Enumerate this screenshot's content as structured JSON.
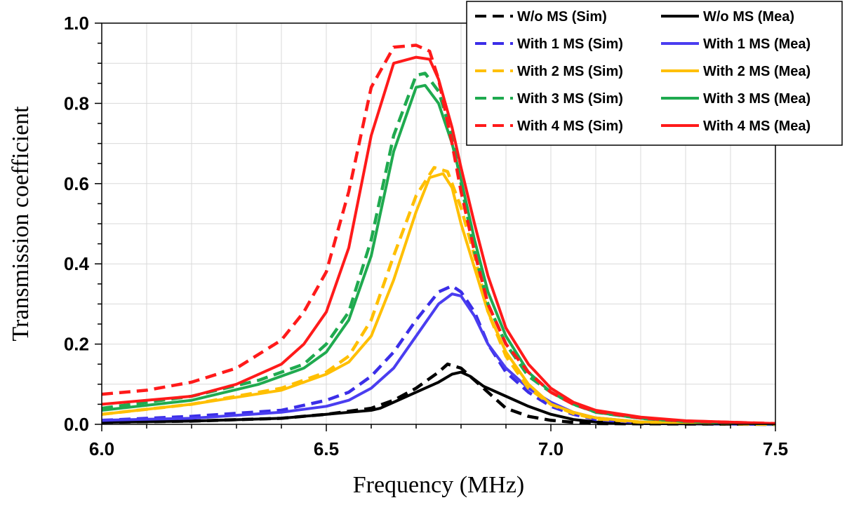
{
  "chart_data": {
    "type": "line",
    "title": "",
    "xlabel": "Frequency (MHz)",
    "ylabel": "Transmission coefficient",
    "xlim": [
      6.0,
      7.5
    ],
    "ylim": [
      0.0,
      1.0
    ],
    "xticks": [
      6.0,
      6.5,
      7.0,
      7.5
    ],
    "xtick_labels": [
      "6.0",
      "6.5",
      "7.0",
      "7.5"
    ],
    "yticks": [
      0.0,
      0.2,
      0.4,
      0.6,
      0.8,
      1.0
    ],
    "ytick_labels": [
      "0.0",
      "0.2",
      "0.4",
      "0.6",
      "0.8",
      "1.0"
    ],
    "grid": true,
    "legend_position": "top-right",
    "series": [
      {
        "name": "W/o MS (Sim)",
        "color": "#000000",
        "dashed": true,
        "points": [
          [
            6.0,
            0.005
          ],
          [
            6.2,
            0.008
          ],
          [
            6.4,
            0.015
          ],
          [
            6.5,
            0.025
          ],
          [
            6.6,
            0.04
          ],
          [
            6.65,
            0.06
          ],
          [
            6.7,
            0.09
          ],
          [
            6.75,
            0.13
          ],
          [
            6.77,
            0.15
          ],
          [
            6.8,
            0.14
          ],
          [
            6.85,
            0.09
          ],
          [
            6.9,
            0.04
          ],
          [
            6.95,
            0.02
          ],
          [
            7.0,
            0.01
          ],
          [
            7.05,
            0.005
          ],
          [
            7.1,
            0.002
          ],
          [
            7.5,
            0.0
          ]
        ]
      },
      {
        "name": "W/o MS (Mea)",
        "color": "#000000",
        "dashed": false,
        "points": [
          [
            6.0,
            0.005
          ],
          [
            6.2,
            0.008
          ],
          [
            6.4,
            0.015
          ],
          [
            6.5,
            0.025
          ],
          [
            6.6,
            0.035
          ],
          [
            6.62,
            0.04
          ],
          [
            6.65,
            0.055
          ],
          [
            6.7,
            0.08
          ],
          [
            6.75,
            0.105
          ],
          [
            6.78,
            0.125
          ],
          [
            6.8,
            0.13
          ],
          [
            6.82,
            0.12
          ],
          [
            6.85,
            0.095
          ],
          [
            6.9,
            0.07
          ],
          [
            6.95,
            0.045
          ],
          [
            7.0,
            0.025
          ],
          [
            7.05,
            0.012
          ],
          [
            7.1,
            0.006
          ],
          [
            7.2,
            0.002
          ],
          [
            7.5,
            0.0
          ]
        ]
      },
      {
        "name": "With 1 MS (Sim)",
        "color": "#3b2ee8",
        "dashed": true,
        "points": [
          [
            6.0,
            0.01
          ],
          [
            6.2,
            0.02
          ],
          [
            6.4,
            0.035
          ],
          [
            6.5,
            0.06
          ],
          [
            6.55,
            0.08
          ],
          [
            6.6,
            0.12
          ],
          [
            6.65,
            0.18
          ],
          [
            6.7,
            0.26
          ],
          [
            6.75,
            0.33
          ],
          [
            6.78,
            0.345
          ],
          [
            6.8,
            0.33
          ],
          [
            6.83,
            0.28
          ],
          [
            6.86,
            0.2
          ],
          [
            6.9,
            0.13
          ],
          [
            6.95,
            0.08
          ],
          [
            7.0,
            0.045
          ],
          [
            7.05,
            0.025
          ],
          [
            7.1,
            0.012
          ],
          [
            7.2,
            0.004
          ],
          [
            7.5,
            0.0
          ]
        ]
      },
      {
        "name": "With 1 MS (Mea)",
        "color": "#4a3df0",
        "dashed": false,
        "points": [
          [
            6.0,
            0.01
          ],
          [
            6.2,
            0.015
          ],
          [
            6.4,
            0.03
          ],
          [
            6.5,
            0.045
          ],
          [
            6.55,
            0.06
          ],
          [
            6.6,
            0.09
          ],
          [
            6.65,
            0.14
          ],
          [
            6.7,
            0.22
          ],
          [
            6.75,
            0.3
          ],
          [
            6.78,
            0.325
          ],
          [
            6.8,
            0.32
          ],
          [
            6.83,
            0.27
          ],
          [
            6.86,
            0.2
          ],
          [
            6.9,
            0.14
          ],
          [
            6.95,
            0.09
          ],
          [
            7.0,
            0.055
          ],
          [
            7.05,
            0.03
          ],
          [
            7.1,
            0.016
          ],
          [
            7.2,
            0.006
          ],
          [
            7.5,
            0.001
          ]
        ]
      },
      {
        "name": "With 2 MS (Sim)",
        "color": "#ffbf00",
        "dashed": true,
        "points": [
          [
            6.0,
            0.025
          ],
          [
            6.2,
            0.05
          ],
          [
            6.4,
            0.09
          ],
          [
            6.5,
            0.13
          ],
          [
            6.55,
            0.17
          ],
          [
            6.6,
            0.26
          ],
          [
            6.65,
            0.42
          ],
          [
            6.7,
            0.57
          ],
          [
            6.74,
            0.64
          ],
          [
            6.77,
            0.63
          ],
          [
            6.8,
            0.54
          ],
          [
            6.83,
            0.42
          ],
          [
            6.86,
            0.28
          ],
          [
            6.9,
            0.17
          ],
          [
            6.95,
            0.09
          ],
          [
            7.0,
            0.05
          ],
          [
            7.05,
            0.027
          ],
          [
            7.1,
            0.014
          ],
          [
            7.2,
            0.005
          ],
          [
            7.5,
            0.0
          ]
        ]
      },
      {
        "name": "With 2 MS (Mea)",
        "color": "#ffbf00",
        "dashed": false,
        "points": [
          [
            6.0,
            0.025
          ],
          [
            6.2,
            0.05
          ],
          [
            6.4,
            0.085
          ],
          [
            6.5,
            0.125
          ],
          [
            6.55,
            0.155
          ],
          [
            6.6,
            0.22
          ],
          [
            6.65,
            0.36
          ],
          [
            6.7,
            0.53
          ],
          [
            6.73,
            0.615
          ],
          [
            6.76,
            0.625
          ],
          [
            6.78,
            0.59
          ],
          [
            6.8,
            0.5
          ],
          [
            6.83,
            0.39
          ],
          [
            6.86,
            0.28
          ],
          [
            6.9,
            0.18
          ],
          [
            6.95,
            0.1
          ],
          [
            7.0,
            0.05
          ],
          [
            7.05,
            0.03
          ],
          [
            7.1,
            0.016
          ],
          [
            7.2,
            0.006
          ],
          [
            7.5,
            0.001
          ]
        ]
      },
      {
        "name": "With 3 MS (Sim)",
        "color": "#1faa4f",
        "dashed": true,
        "points": [
          [
            6.0,
            0.04
          ],
          [
            6.2,
            0.07
          ],
          [
            6.35,
            0.11
          ],
          [
            6.45,
            0.15
          ],
          [
            6.5,
            0.2
          ],
          [
            6.55,
            0.28
          ],
          [
            6.6,
            0.46
          ],
          [
            6.65,
            0.72
          ],
          [
            6.7,
            0.87
          ],
          [
            6.72,
            0.875
          ],
          [
            6.75,
            0.83
          ],
          [
            6.78,
            0.72
          ],
          [
            6.8,
            0.6
          ],
          [
            6.83,
            0.43
          ],
          [
            6.86,
            0.3
          ],
          [
            6.9,
            0.2
          ],
          [
            6.95,
            0.12
          ],
          [
            7.0,
            0.08
          ],
          [
            7.05,
            0.05
          ],
          [
            7.1,
            0.03
          ],
          [
            7.2,
            0.015
          ],
          [
            7.3,
            0.007
          ],
          [
            7.5,
            0.001
          ]
        ]
      },
      {
        "name": "With 3 MS (Mea)",
        "color": "#1faa4f",
        "dashed": false,
        "points": [
          [
            6.0,
            0.035
          ],
          [
            6.2,
            0.06
          ],
          [
            6.35,
            0.1
          ],
          [
            6.45,
            0.14
          ],
          [
            6.5,
            0.18
          ],
          [
            6.55,
            0.26
          ],
          [
            6.6,
            0.42
          ],
          [
            6.65,
            0.68
          ],
          [
            6.7,
            0.84
          ],
          [
            6.72,
            0.845
          ],
          [
            6.75,
            0.8
          ],
          [
            6.78,
            0.7
          ],
          [
            6.8,
            0.61
          ],
          [
            6.83,
            0.46
          ],
          [
            6.86,
            0.33
          ],
          [
            6.9,
            0.22
          ],
          [
            6.95,
            0.13
          ],
          [
            7.0,
            0.08
          ],
          [
            7.05,
            0.05
          ],
          [
            7.1,
            0.03
          ],
          [
            7.2,
            0.015
          ],
          [
            7.3,
            0.007
          ],
          [
            7.5,
            0.001
          ]
        ]
      },
      {
        "name": "With 4 MS (Sim)",
        "color": "#ff1a1a",
        "dashed": true,
        "points": [
          [
            6.0,
            0.075
          ],
          [
            6.1,
            0.085
          ],
          [
            6.2,
            0.105
          ],
          [
            6.3,
            0.14
          ],
          [
            6.4,
            0.21
          ],
          [
            6.45,
            0.28
          ],
          [
            6.5,
            0.38
          ],
          [
            6.55,
            0.58
          ],
          [
            6.6,
            0.84
          ],
          [
            6.65,
            0.94
          ],
          [
            6.7,
            0.945
          ],
          [
            6.73,
            0.93
          ],
          [
            6.75,
            0.86
          ],
          [
            6.78,
            0.7
          ],
          [
            6.8,
            0.58
          ],
          [
            6.83,
            0.43
          ],
          [
            6.86,
            0.3
          ],
          [
            6.9,
            0.2
          ],
          [
            6.95,
            0.13
          ],
          [
            7.0,
            0.08
          ],
          [
            7.05,
            0.05
          ],
          [
            7.1,
            0.032
          ],
          [
            7.2,
            0.016
          ],
          [
            7.3,
            0.008
          ],
          [
            7.5,
            0.002
          ]
        ]
      },
      {
        "name": "With 4 MS (Mea)",
        "color": "#ff1a1a",
        "dashed": false,
        "points": [
          [
            6.0,
            0.05
          ],
          [
            6.2,
            0.07
          ],
          [
            6.3,
            0.1
          ],
          [
            6.4,
            0.15
          ],
          [
            6.45,
            0.2
          ],
          [
            6.5,
            0.28
          ],
          [
            6.55,
            0.44
          ],
          [
            6.6,
            0.72
          ],
          [
            6.65,
            0.9
          ],
          [
            6.7,
            0.915
          ],
          [
            6.73,
            0.91
          ],
          [
            6.75,
            0.86
          ],
          [
            6.78,
            0.74
          ],
          [
            6.8,
            0.64
          ],
          [
            6.83,
            0.5
          ],
          [
            6.86,
            0.37
          ],
          [
            6.9,
            0.24
          ],
          [
            6.95,
            0.15
          ],
          [
            7.0,
            0.09
          ],
          [
            7.05,
            0.055
          ],
          [
            7.1,
            0.035
          ],
          [
            7.2,
            0.018
          ],
          [
            7.3,
            0.009
          ],
          [
            7.5,
            0.002
          ]
        ]
      }
    ]
  }
}
